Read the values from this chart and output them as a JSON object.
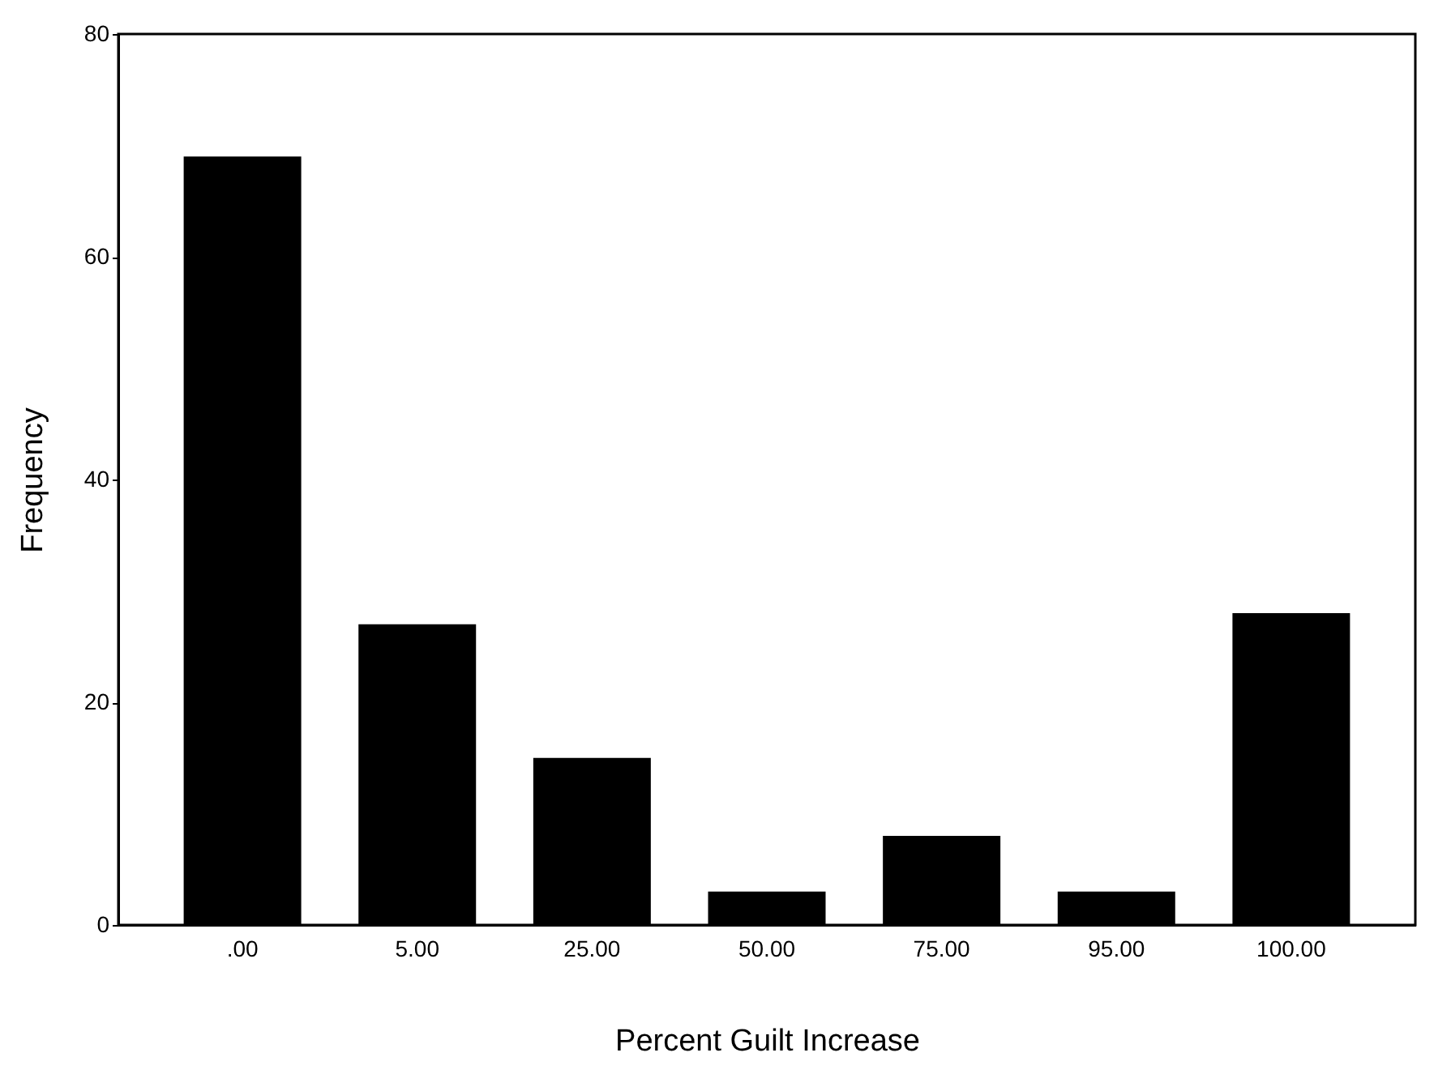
{
  "chart_data": {
    "type": "bar",
    "xlabel": "Percent Guilt Increase",
    "ylabel": "Frequency",
    "categories": [
      ".00",
      "5.00",
      "25.00",
      "50.00",
      "75.00",
      "95.00",
      "100.00"
    ],
    "values": [
      69,
      27,
      15,
      3,
      8,
      3,
      28
    ],
    "color": "#000000",
    "ylim": [
      0,
      80
    ],
    "yticks": [
      0,
      20,
      40,
      60,
      80
    ],
    "grid": false
  }
}
